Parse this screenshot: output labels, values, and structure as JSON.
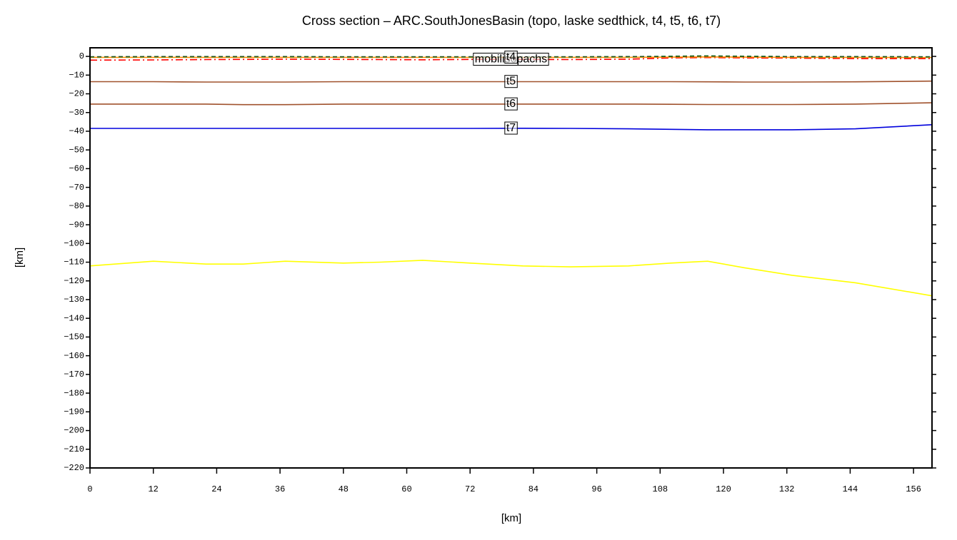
{
  "chart_data": {
    "type": "line",
    "title": "Cross section – ARC.SouthJonesBasin (topo, laske sedthick, t4, t5, t6, t7)",
    "xlabel": "[km]",
    "ylabel": "[km]",
    "x": [
      0,
      12,
      22,
      29,
      37,
      48,
      55,
      63,
      72,
      82,
      91,
      102,
      110,
      117,
      124,
      133,
      145,
      159.5
    ],
    "xlim": [
      0,
      159.5
    ],
    "ylim": [
      -220,
      4.6
    ],
    "xticks": [
      0,
      12,
      24,
      36,
      48,
      60,
      72,
      84,
      96,
      108,
      120,
      132,
      144,
      156
    ],
    "yticks": [
      0,
      {
        "value": -10,
        "label": "−10"
      },
      {
        "value": -20,
        "label": "−20"
      },
      {
        "value": -30,
        "label": "−30"
      },
      {
        "value": -40,
        "label": "−40"
      },
      {
        "value": -50,
        "label": "−50"
      },
      {
        "value": -60,
        "label": "−60"
      },
      {
        "value": -70,
        "label": "−70"
      },
      {
        "value": -80,
        "label": "−80"
      },
      {
        "value": -90,
        "label": "−90"
      },
      {
        "value": -100,
        "label": "−100"
      },
      {
        "value": -110,
        "label": "−110"
      },
      {
        "value": -120,
        "label": "−120"
      },
      {
        "value": -130,
        "label": "−130"
      },
      {
        "value": -140,
        "label": "−140"
      },
      {
        "value": -150,
        "label": "−150"
      },
      {
        "value": -160,
        "label": "−160"
      },
      {
        "value": -170,
        "label": "−170"
      },
      {
        "value": -180,
        "label": "−180"
      },
      {
        "value": -190,
        "label": "−190"
      },
      {
        "value": -200,
        "label": "−200"
      },
      {
        "value": -210,
        "label": "−210"
      },
      {
        "value": -220,
        "label": "−220"
      }
    ],
    "series": [
      {
        "color": "#ffff00",
        "dash": "solid",
        "values": [
          -112,
          -109.5,
          -111,
          -111,
          -109.5,
          -110.5,
          -110,
          -109,
          -110.5,
          -112,
          -112.5,
          -112,
          -110.5,
          -109.5,
          -113,
          -117,
          -121,
          -128
        ]
      },
      {
        "name": "t7",
        "color": "#0000dd",
        "dash": "solid",
        "values": [
          -38.5,
          -38.5,
          -38.5,
          -38.5,
          -38.5,
          -38.5,
          -38.5,
          -38.5,
          -38.5,
          -38.4,
          -38.5,
          -38.7,
          -39,
          -39.2,
          -39.2,
          -39.2,
          -38.7,
          -36.5
        ]
      },
      {
        "name": "t6",
        "color": "#a0522d",
        "dash": "solid",
        "values": [
          -25.5,
          -25.5,
          -25.5,
          -25.8,
          -25.8,
          -25.5,
          -25.5,
          -25.5,
          -25.5,
          -25.5,
          -25.5,
          -25.5,
          -25.6,
          -25.7,
          -25.7,
          -25.7,
          -25.5,
          -24.8
        ]
      },
      {
        "name": "t5",
        "color": "#a0522d",
        "dash": "solid",
        "values": [
          -13.5,
          -13.5,
          -13.7,
          -13.7,
          -13.7,
          -13.5,
          -13.5,
          -13.5,
          -13.5,
          -13.5,
          -13.5,
          -13.5,
          -13.5,
          -13.6,
          -13.7,
          -13.7,
          -13.6,
          -13.2
        ]
      },
      {
        "name": "mobilisopachs",
        "color": "#ff0000",
        "dash": "dashdot",
        "values": [
          -2,
          -1.9,
          -1.7,
          -1.6,
          -1.5,
          -1.6,
          -1.7,
          -1.8,
          -1.6,
          -1.6,
          -1.7,
          -1.5,
          -0.8,
          -0.6,
          -0.8,
          -0.9,
          -1.2,
          -1.2
        ]
      },
      {
        "name": "t4",
        "color": "#ff8c00",
        "dash": "solid",
        "values": [
          -0.5,
          -0.5,
          -0.5,
          -0.5,
          -0.5,
          -0.5,
          -0.5,
          -0.5,
          -0.5,
          -0.5,
          -0.5,
          -0.5,
          -0.4,
          -0.3,
          -0.4,
          -0.5,
          -0.5,
          -0.6
        ]
      },
      {
        "color": "#33aa33",
        "dash": "dashed",
        "values": [
          -0.3,
          -0.2,
          -0.2,
          -0.2,
          -0.2,
          -0.3,
          -0.3,
          -0.3,
          -0.3,
          -0.3,
          -0.3,
          -0.2,
          0.1,
          0.3,
          0.1,
          -0.1,
          -0.2,
          -0.3
        ]
      },
      {
        "color": "#225522",
        "dash": "dashed",
        "values": [
          -0.2,
          -0.1,
          -0.1,
          -0.1,
          -0.1,
          -0.2,
          -0.2,
          -0.2,
          -0.2,
          -0.2,
          -0.2,
          -0.1,
          0,
          0.2,
          0,
          -0.1,
          -0.1,
          -0.2
        ]
      }
    ]
  }
}
